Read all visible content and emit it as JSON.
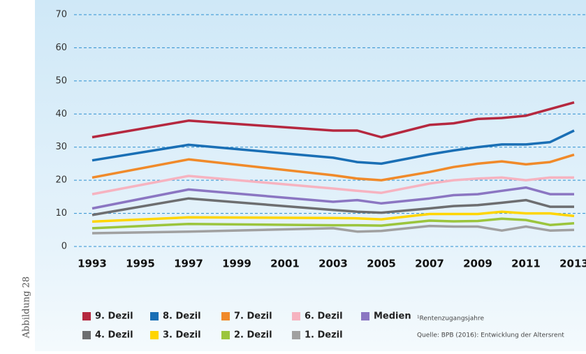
{
  "side_label": "Abbildung 28",
  "chart_data": {
    "type": "line",
    "x": [
      1993,
      1997,
      2003,
      2004,
      2005,
      2007,
      2008,
      2009,
      2010,
      2011,
      2012,
      2013
    ],
    "xlim": [
      1993,
      2013
    ],
    "xticks": [
      1993,
      1995,
      1997,
      1999,
      2001,
      2003,
      2005,
      2007,
      2009,
      2011,
      2013
    ],
    "ylim": [
      0,
      70
    ],
    "yticks": [
      0,
      10,
      20,
      30,
      40,
      50,
      60,
      70
    ],
    "grid": true,
    "series": [
      {
        "name": "9. Dezil",
        "color": "#b5283f",
        "values": [
          33,
          38,
          35,
          35,
          33,
          36.7,
          37.2,
          38.5,
          38.8,
          39.5,
          41.5,
          43.5
        ]
      },
      {
        "name": "8. Dezil",
        "color": "#1a6fb5",
        "values": [
          26,
          30.7,
          26.8,
          25.5,
          25,
          27.8,
          29,
          30,
          30.8,
          30.8,
          31.5,
          35
        ]
      },
      {
        "name": "7. Dezil",
        "color": "#f08a2a",
        "values": [
          20.8,
          26.3,
          21.5,
          20.5,
          20,
          22.5,
          24,
          25,
          25.7,
          24.8,
          25.5,
          27.7
        ]
      },
      {
        "name": "6. Dezil",
        "color": "#f6b3c0",
        "values": [
          15.8,
          21.3,
          17.5,
          16.8,
          16.2,
          19,
          20,
          20.5,
          20.8,
          20,
          20.8,
          20.8
        ]
      },
      {
        "name": "Medien",
        "color": "#8b76c2",
        "values": [
          11.5,
          17.2,
          13.5,
          14,
          13,
          14.5,
          15.5,
          15.8,
          16.8,
          17.8,
          15.8,
          15.8
        ]
      },
      {
        "name": "4. Dezil",
        "color": "#6d6e70",
        "values": [
          9.5,
          14.5,
          11,
          10.5,
          10.2,
          11.5,
          12.2,
          12.5,
          13.2,
          14,
          12,
          12
        ]
      },
      {
        "name": "3. Dezil",
        "color": "#ffd500",
        "values": [
          7.5,
          8.8,
          8.6,
          8.5,
          8.2,
          9.8,
          9.8,
          9.8,
          10.5,
          10,
          10,
          9.2
        ]
      },
      {
        "name": "2. Dezil",
        "color": "#9bc53d",
        "values": [
          5.5,
          6.8,
          6.4,
          6.4,
          6.3,
          7.8,
          7.6,
          7.7,
          8.4,
          8,
          6.5,
          7
        ]
      },
      {
        "name": "1. Dezil",
        "color": "#a0a0a0",
        "values": [
          4,
          4.5,
          5.5,
          4.5,
          4.7,
          6.2,
          6,
          6,
          4.8,
          6,
          4.8,
          5
        ]
      }
    ],
    "footnote": "¹Rentenzugangsjahre",
    "source": "Quelle: BPB (2016): Entwicklung der Altersrent"
  }
}
